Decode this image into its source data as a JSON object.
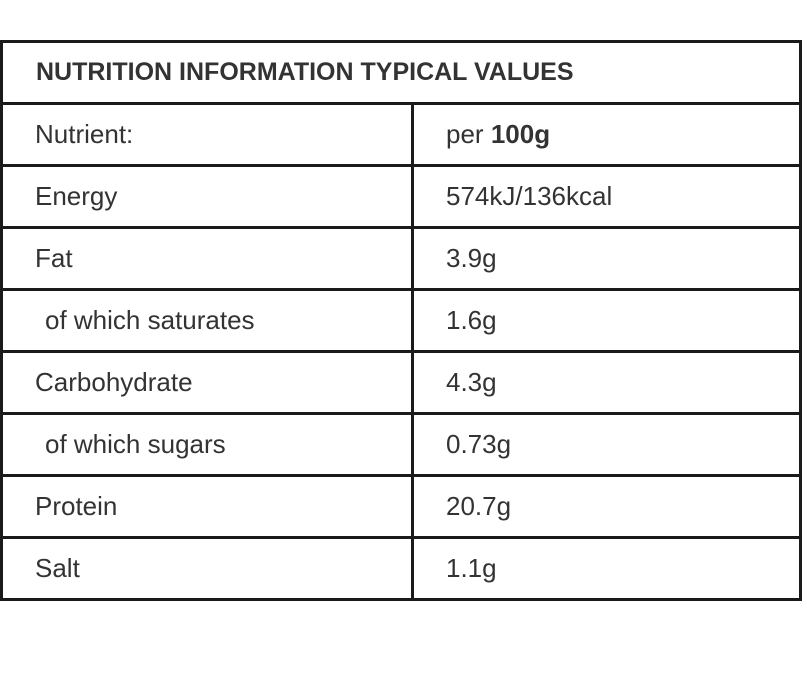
{
  "table": {
    "title": "NUTRITION INFORMATION TYPICAL VALUES",
    "header": {
      "nutrient_label": "Nutrient:",
      "per_prefix": "per ",
      "per_amount": "100g"
    },
    "rows": [
      {
        "name": "Energy",
        "value": "574kJ/136kcal"
      },
      {
        "name": "Fat",
        "value": "3.9g"
      },
      {
        "name": "of which saturates",
        "value": "1.6g"
      },
      {
        "name": "Carbohydrate",
        "value": "4.3g"
      },
      {
        "name": "of which sugars",
        "value": "0.73g"
      },
      {
        "name": "Protein",
        "value": "20.7g"
      },
      {
        "name": "Salt",
        "value": "1.1g"
      }
    ]
  }
}
